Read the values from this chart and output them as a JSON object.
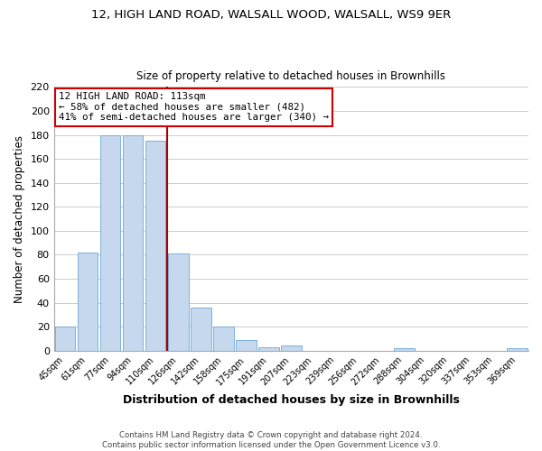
{
  "title": "12, HIGH LAND ROAD, WALSALL WOOD, WALSALL, WS9 9ER",
  "subtitle": "Size of property relative to detached houses in Brownhills",
  "xlabel": "Distribution of detached houses by size in Brownhills",
  "ylabel": "Number of detached properties",
  "bin_labels": [
    "45sqm",
    "61sqm",
    "77sqm",
    "94sqm",
    "110sqm",
    "126sqm",
    "142sqm",
    "158sqm",
    "175sqm",
    "191sqm",
    "207sqm",
    "223sqm",
    "239sqm",
    "256sqm",
    "272sqm",
    "288sqm",
    "304sqm",
    "320sqm",
    "337sqm",
    "353sqm",
    "369sqm"
  ],
  "bar_heights": [
    20,
    82,
    180,
    180,
    175,
    81,
    36,
    20,
    9,
    3,
    4,
    0,
    0,
    0,
    0,
    2,
    0,
    0,
    0,
    0,
    2
  ],
  "highlight_bar_index": 4,
  "bar_color": "#c5d8ee",
  "bar_edge_color": "#6fa8d4",
  "annotation_title": "12 HIGH LAND ROAD: 113sqm",
  "annotation_line1": "← 58% of detached houses are smaller (482)",
  "annotation_line2": "41% of semi-detached houses are larger (340) →",
  "ylim": [
    0,
    220
  ],
  "yticks": [
    0,
    20,
    40,
    60,
    80,
    100,
    120,
    140,
    160,
    180,
    200,
    220
  ],
  "footer1": "Contains HM Land Registry data © Crown copyright and database right 2024.",
  "footer2": "Contains public sector information licensed under the Open Government Licence v3.0.",
  "bg_color": "#ffffff",
  "grid_color": "#cccccc",
  "red_line_color": "#aa0000"
}
